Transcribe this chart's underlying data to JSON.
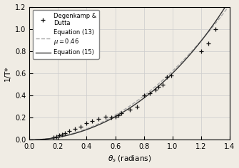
{
  "title": "",
  "xlabel": "$\\theta_s$ (radians)",
  "ylabel": "1/T*",
  "xlim": [
    0,
    1.4
  ],
  "ylim": [
    0,
    1.2
  ],
  "xticks": [
    0,
    0.2,
    0.4,
    0.6,
    0.8,
    1.0,
    1.2,
    1.4
  ],
  "yticks": [
    0,
    0.2,
    0.4,
    0.6,
    0.8,
    1.0,
    1.2
  ],
  "scatter_x": [
    0.17,
    0.19,
    0.21,
    0.23,
    0.25,
    0.28,
    0.32,
    0.36,
    0.4,
    0.44,
    0.48,
    0.53,
    0.57,
    0.6,
    0.62,
    0.64,
    0.7,
    0.75,
    0.8,
    0.84,
    0.88,
    0.9,
    0.93,
    0.96,
    0.99,
    1.2,
    1.25,
    1.3
  ],
  "scatter_y": [
    0.02,
    0.03,
    0.04,
    0.05,
    0.06,
    0.08,
    0.1,
    0.12,
    0.15,
    0.17,
    0.19,
    0.21,
    0.2,
    0.21,
    0.22,
    0.24,
    0.27,
    0.3,
    0.4,
    0.42,
    0.45,
    0.48,
    0.5,
    0.57,
    0.58,
    0.8,
    0.87,
    1.0
  ],
  "mu": 0.46,
  "legend_labels": [
    "Degenkamp &\nDutta",
    "Equation (13)\n$\\mu = 0.46$",
    "Equation (15)"
  ],
  "line_color_eq13": "#aaaaaa",
  "line_color_eq15": "#333333",
  "scatter_color": "#111111",
  "bg_color": "#f0ece4",
  "grid_color": "#cccccc",
  "legend_bg": "#ffffff"
}
